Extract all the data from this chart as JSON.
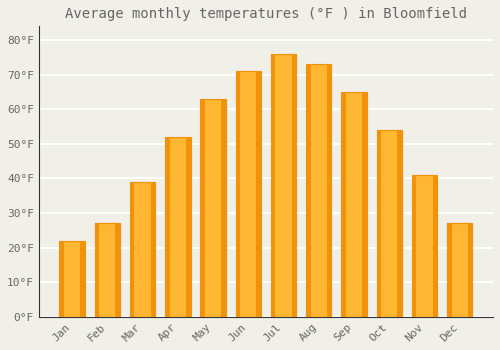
{
  "title": "Average monthly temperatures (°F ) in Bloomfield",
  "months": [
    "Jan",
    "Feb",
    "Mar",
    "Apr",
    "May",
    "Jun",
    "Jul",
    "Aug",
    "Sep",
    "Oct",
    "Nov",
    "Dec"
  ],
  "values": [
    22,
    27,
    39,
    52,
    63,
    71,
    76,
    73,
    65,
    54,
    41,
    27
  ],
  "bar_color_light": "#FFB733",
  "bar_color_dark": "#F0920A",
  "background_color": "#F0EFE8",
  "grid_color": "#FFFFFF",
  "text_color": "#666666",
  "ylim": [
    0,
    84
  ],
  "yticks": [
    0,
    10,
    20,
    30,
    40,
    50,
    60,
    70,
    80
  ],
  "ytick_labels": [
    "0°F",
    "10°F",
    "20°F",
    "30°F",
    "40°F",
    "50°F",
    "60°F",
    "70°F",
    "80°F"
  ],
  "title_fontsize": 10,
  "tick_fontsize": 8,
  "font_family": "monospace",
  "bar_width": 0.72
}
